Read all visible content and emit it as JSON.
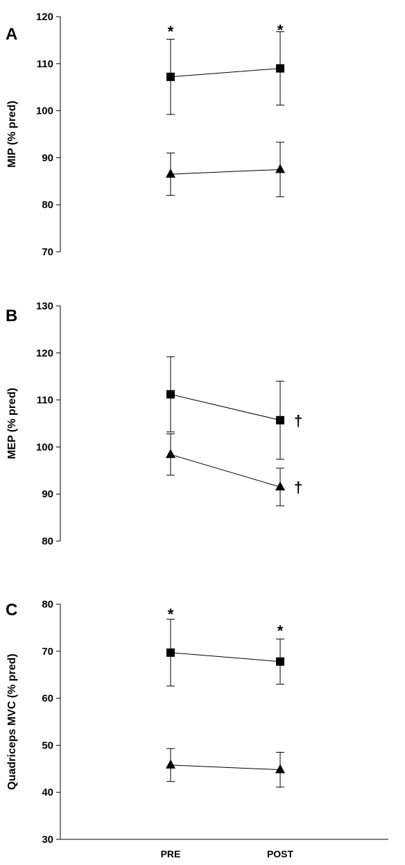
{
  "chart_data": [
    {
      "type": "line",
      "panel": "A",
      "ylabel": "MIP (% pred)",
      "ylim": [
        70,
        120
      ],
      "yticks": [
        70,
        80,
        90,
        100,
        110,
        120
      ],
      "categories": [
        "PRE",
        "POST"
      ],
      "show_category_labels": false,
      "series": [
        {
          "marker": "square",
          "values": [
            107.2,
            109.0
          ],
          "error": [
            8.0,
            7.8
          ]
        },
        {
          "marker": "triangle",
          "values": [
            86.5,
            87.5
          ],
          "error": [
            4.5,
            5.8
          ]
        }
      ],
      "annotations": [
        {
          "text": "*",
          "category": "PRE",
          "y": 117.5
        },
        {
          "text": "*",
          "category": "POST",
          "y": 117.8
        }
      ]
    },
    {
      "type": "line",
      "panel": "B",
      "ylabel": "MEP (% pred)",
      "ylim": [
        80,
        130
      ],
      "yticks": [
        80,
        90,
        100,
        110,
        120,
        130
      ],
      "categories": [
        "PRE",
        "POST"
      ],
      "show_category_labels": false,
      "series": [
        {
          "marker": "square",
          "values": [
            111.2,
            105.7
          ],
          "error": [
            8.0,
            8.3
          ]
        },
        {
          "marker": "triangle",
          "values": [
            98.4,
            91.5
          ],
          "error": [
            4.4,
            4.0
          ]
        }
      ],
      "annotations": [
        {
          "text": "†",
          "category": "POST",
          "y": 105.7,
          "side": "right"
        },
        {
          "text": "†",
          "category": "POST",
          "y": 91.5,
          "side": "right"
        }
      ]
    },
    {
      "type": "line",
      "panel": "C",
      "ylabel": "Quadriceps MVC (% pred)",
      "ylim": [
        30,
        80
      ],
      "yticks": [
        30,
        40,
        50,
        60,
        70,
        80
      ],
      "categories": [
        "PRE",
        "POST"
      ],
      "show_category_labels": true,
      "series": [
        {
          "marker": "square",
          "values": [
            69.7,
            67.8
          ],
          "error": [
            7.1,
            4.8
          ]
        },
        {
          "marker": "triangle",
          "values": [
            45.8,
            44.8
          ],
          "error": [
            3.5,
            3.7
          ]
        }
      ],
      "annotations": [
        {
          "text": "*",
          "category": "PRE",
          "y": 78.5
        },
        {
          "text": "*",
          "category": "POST",
          "y": 75.0
        }
      ]
    }
  ]
}
